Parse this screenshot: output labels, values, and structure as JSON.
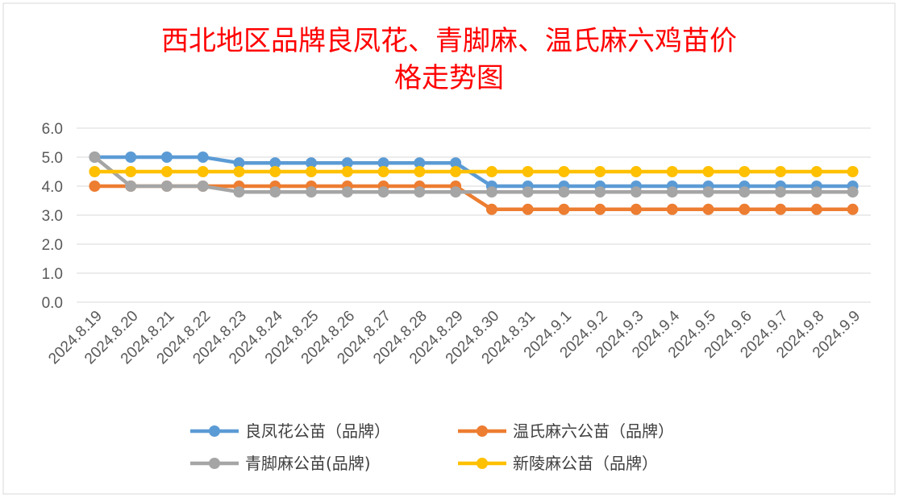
{
  "chart_data": {
    "type": "line",
    "title_line1": "西北地区品牌良凤花、青脚麻、温氏麻六鸡苗价",
    "title_line2": "格走势图",
    "categories": [
      "2024.8.19",
      "2024.8.20",
      "2024.8.21",
      "2024.8.22",
      "2024.8.23",
      "2024.8.24",
      "2024.8.25",
      "2024.8.26",
      "2024.8.27",
      "2024.8.28",
      "2024.8.29",
      "2024.8.30",
      "2024.8.31",
      "2024.9.1",
      "2024.9.2",
      "2024.9.3",
      "2024.9.4",
      "2024.9.5",
      "2024.9.6",
      "2024.9.7",
      "2024.9.8",
      "2024.9.9"
    ],
    "ylim": [
      0,
      6
    ],
    "yticks": [
      "0.0",
      "1.0",
      "2.0",
      "3.0",
      "4.0",
      "5.0",
      "6.0"
    ],
    "grid": true,
    "legend_position": "bottom",
    "series": [
      {
        "name": "良凤花公苗（品牌）",
        "color": "#5b9bd5",
        "values": [
          5.0,
          5.0,
          5.0,
          5.0,
          4.8,
          4.8,
          4.8,
          4.8,
          4.8,
          4.8,
          4.8,
          4.0,
          4.0,
          4.0,
          4.0,
          4.0,
          4.0,
          4.0,
          4.0,
          4.0,
          4.0,
          4.0
        ]
      },
      {
        "name": "温氏麻六公苗（品牌）",
        "color": "#ed7d31",
        "values": [
          4.0,
          4.0,
          4.0,
          4.0,
          4.0,
          4.0,
          4.0,
          4.0,
          4.0,
          4.0,
          4.0,
          3.2,
          3.2,
          3.2,
          3.2,
          3.2,
          3.2,
          3.2,
          3.2,
          3.2,
          3.2,
          3.2
        ]
      },
      {
        "name": "青脚麻公苗(品牌)",
        "color": "#a5a5a5",
        "values": [
          5.0,
          4.0,
          4.0,
          4.0,
          3.8,
          3.8,
          3.8,
          3.8,
          3.8,
          3.8,
          3.8,
          3.8,
          3.8,
          3.8,
          3.8,
          3.8,
          3.8,
          3.8,
          3.8,
          3.8,
          3.8,
          3.8
        ]
      },
      {
        "name": "新陵麻公苗（品牌）",
        "color": "#ffc000",
        "values": [
          4.5,
          4.5,
          4.5,
          4.5,
          4.5,
          4.5,
          4.5,
          4.5,
          4.5,
          4.5,
          4.5,
          4.5,
          4.5,
          4.5,
          4.5,
          4.5,
          4.5,
          4.5,
          4.5,
          4.5,
          4.5,
          4.5
        ]
      }
    ]
  }
}
